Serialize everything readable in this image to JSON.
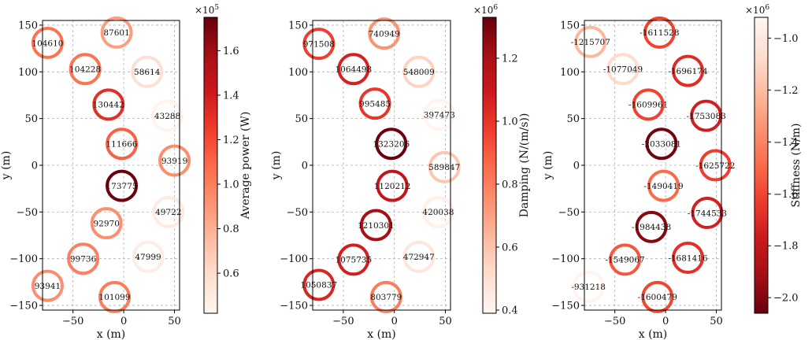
{
  "chart_data": [
    {
      "type": "scatter",
      "xlabel": "x (m)",
      "ylabel": "y (m)",
      "xlim": [
        -80,
        55
      ],
      "ylim": [
        -155,
        155
      ],
      "xticks": [
        -50,
        0,
        50
      ],
      "xtick_labels": [
        "−50",
        "0",
        "50"
      ],
      "yticks": [
        -150,
        -100,
        -50,
        0,
        50,
        100,
        150
      ],
      "ytick_labels": [
        "−150",
        "−100",
        "−50",
        "0",
        "50",
        "100",
        "150"
      ],
      "grid": true,
      "colormap": "Reds",
      "colorbar": {
        "label": "Average power (W)",
        "exponent_label": "×10",
        "exponent_power": "5",
        "range": [
          0.42,
          1.75
        ],
        "ticks": [
          0.6,
          0.8,
          1.0,
          1.2,
          1.4,
          1.6
        ],
        "tick_labels": [
          "0.6",
          "0.8",
          "1.0",
          "1.2",
          "1.4",
          "1.6"
        ]
      },
      "points": [
        {
          "x": -7,
          "y": 142,
          "value": 87601,
          "label": "87601"
        },
        {
          "x": -75,
          "y": 131,
          "value": 104610,
          "label": "104610"
        },
        {
          "x": -38,
          "y": 103,
          "value": 104228,
          "label": "104228"
        },
        {
          "x": 23,
          "y": 100,
          "value": 58614,
          "label": "58614"
        },
        {
          "x": -15,
          "y": 65,
          "value": 130442,
          "label": "130442"
        },
        {
          "x": 43,
          "y": 53,
          "value": 43288,
          "label": "43288"
        },
        {
          "x": -2,
          "y": 23,
          "value": 111666,
          "label": "111666"
        },
        {
          "x": 50,
          "y": 5,
          "value": 93919,
          "label": "93919"
        },
        {
          "x": -2,
          "y": -22,
          "value": 173775,
          "label": "173775"
        },
        {
          "x": 44,
          "y": -50,
          "value": 49722,
          "label": "49722"
        },
        {
          "x": -17,
          "y": -62,
          "value": 92970,
          "label": "92970"
        },
        {
          "x": -40,
          "y": -100,
          "value": 99736,
          "label": "99736"
        },
        {
          "x": 24,
          "y": -98,
          "value": 47999,
          "label": "47999"
        },
        {
          "x": -75,
          "y": -129,
          "value": 93941,
          "label": "93941"
        },
        {
          "x": -9,
          "y": -141,
          "value": 101099,
          "label": "101099"
        }
      ]
    },
    {
      "type": "scatter",
      "xlabel": "x (m)",
      "ylabel": "y (m)",
      "xlim": [
        -80,
        55
      ],
      "ylim": [
        -155,
        155
      ],
      "xticks": [
        -50,
        0,
        50
      ],
      "xtick_labels": [
        "−50",
        "0",
        "50"
      ],
      "yticks": [
        -150,
        -100,
        -50,
        0,
        50,
        100,
        150
      ],
      "ytick_labels": [
        "−150",
        "−100",
        "−50",
        "0",
        "50",
        "100",
        "150"
      ],
      "grid": true,
      "colormap": "Reds",
      "colorbar": {
        "label": "Damping (N/(m/s))",
        "exponent_label": "×10",
        "exponent_power": "6",
        "range": [
          0.39,
          1.33
        ],
        "ticks": [
          0.4,
          0.6,
          0.8,
          1.0,
          1.2
        ],
        "tick_labels": [
          "0.4",
          "0.6",
          "0.8",
          "1.0",
          "1.2"
        ]
      },
      "points": [
        {
          "x": -10,
          "y": 141,
          "value": 740949,
          "label": "740949"
        },
        {
          "x": -74,
          "y": 130,
          "value": 971508,
          "label": "971508"
        },
        {
          "x": -40,
          "y": 103,
          "value": 1064498,
          "label": "1064498"
        },
        {
          "x": 24,
          "y": 100,
          "value": 548009,
          "label": "548009"
        },
        {
          "x": -19,
          "y": 66,
          "value": 995485,
          "label": "995485"
        },
        {
          "x": 44,
          "y": 54,
          "value": 397473,
          "label": "397473"
        },
        {
          "x": -3,
          "y": 23,
          "value": 1323206,
          "label": "1323206"
        },
        {
          "x": 49,
          "y": -2,
          "value": 589847,
          "label": "589847"
        },
        {
          "x": -2,
          "y": -22,
          "value": 1120212,
          "label": "1120212"
        },
        {
          "x": 43,
          "y": -50,
          "value": 420038,
          "label": "420038"
        },
        {
          "x": -18,
          "y": -64,
          "value": 1210301,
          "label": "1210301"
        },
        {
          "x": -40,
          "y": -101,
          "value": 1075735,
          "label": "1075735"
        },
        {
          "x": 24,
          "y": -98,
          "value": 472947,
          "label": "472947"
        },
        {
          "x": -74,
          "y": -128,
          "value": 1050837,
          "label": "1050837"
        },
        {
          "x": -8,
          "y": -141,
          "value": 803779,
          "label": "803779"
        }
      ]
    },
    {
      "type": "scatter",
      "xlabel": "x (m)",
      "ylabel": "y (m)",
      "xlim": [
        -80,
        55
      ],
      "ylim": [
        -155,
        155
      ],
      "xticks": [
        -50,
        0,
        50
      ],
      "xtick_labels": [
        "−50",
        "0",
        "50"
      ],
      "yticks": [
        -150,
        -100,
        -50,
        0,
        50,
        100,
        150
      ],
      "ytick_labels": [
        "−150",
        "−100",
        "−50",
        "0",
        "50",
        "100",
        "150"
      ],
      "grid": true,
      "colormap": "Reds_r",
      "colorbar": {
        "label": "Stiffness (N/m)",
        "exponent_label": "×10",
        "exponent_power": "6",
        "range": [
          -2.06,
          -0.92
        ],
        "ticks": [
          -1.0,
          -1.2,
          -1.4,
          -1.6,
          -1.8,
          -2.0
        ],
        "tick_labels": [
          "−1.0",
          "−1.2",
          "−1.4",
          "−1.6",
          "−1.8",
          "−2.0"
        ]
      },
      "points": [
        {
          "x": -6,
          "y": 142,
          "value": -1611528,
          "label": "-1611528"
        },
        {
          "x": -74,
          "y": 132,
          "value": -1215707,
          "label": "-1215707"
        },
        {
          "x": -42,
          "y": 103,
          "value": -1077049,
          "label": "-1077049"
        },
        {
          "x": 22,
          "y": 101,
          "value": -1696174,
          "label": "-1696174"
        },
        {
          "x": -17,
          "y": 65,
          "value": -1609961,
          "label": "-1609961"
        },
        {
          "x": 40,
          "y": 53,
          "value": -1753083,
          "label": "-1753083"
        },
        {
          "x": -4,
          "y": 23,
          "value": -2033081,
          "label": "-2033081"
        },
        {
          "x": 49,
          "y": 0,
          "value": -1625722,
          "label": "-1625722"
        },
        {
          "x": -2,
          "y": -22,
          "value": -1490419,
          "label": "-1490419"
        },
        {
          "x": 41,
          "y": -51,
          "value": -1744533,
          "label": "-1744533"
        },
        {
          "x": -14,
          "y": -66,
          "value": -1984438,
          "label": "-1984438"
        },
        {
          "x": -40,
          "y": -101,
          "value": -1549067,
          "label": "-1549067"
        },
        {
          "x": 22,
          "y": -99,
          "value": -1681416,
          "label": "-1681416"
        },
        {
          "x": -76,
          "y": -130,
          "value": -931218,
          "label": "-931218"
        },
        {
          "x": -8,
          "y": -141,
          "value": -1600479,
          "label": "-1600479"
        }
      ]
    }
  ]
}
